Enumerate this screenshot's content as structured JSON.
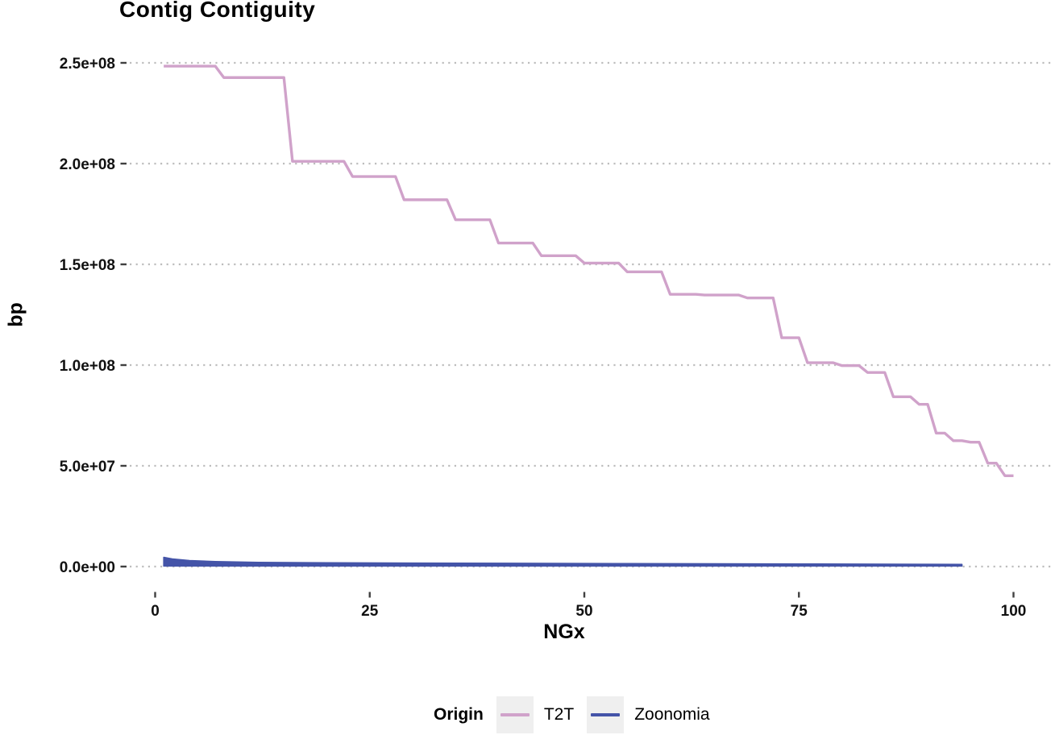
{
  "chart_data": {
    "type": "line",
    "title": "Contig Contiguity",
    "xlabel": "NGx",
    "ylabel": "bp",
    "xlim": [
      0,
      100
    ],
    "ylim": [
      0,
      250000000
    ],
    "x_ticks": [
      0,
      25,
      50,
      75,
      100
    ],
    "y_ticks": [
      {
        "value": 0,
        "label": "0.0e+00"
      },
      {
        "value": 50000000,
        "label": "5.0e+07"
      },
      {
        "value": 100000000,
        "label": "1.0e+08"
      },
      {
        "value": 150000000,
        "label": "1.5e+08"
      },
      {
        "value": 200000000,
        "label": "2.0e+08"
      },
      {
        "value": 250000000,
        "label": "2.5e+08"
      }
    ],
    "grid": "horizontal-dotted-only",
    "grid_color": "#BDBDBD",
    "tick_color": "#404040",
    "legend": {
      "title": "Origin",
      "position": "bottom",
      "entries": [
        {
          "label": "T2T",
          "color": "#D0A2CA"
        },
        {
          "label": "Zoonomia",
          "color": "#4454A8"
        }
      ]
    },
    "series": [
      {
        "name": "T2T",
        "style": "ngx-step-line",
        "color": "#D0A2CA",
        "line_width": 3.4,
        "segments": [
          {
            "from_x": 1,
            "to_x": 7,
            "bp": 248387328
          },
          {
            "from_x": 8,
            "to_x": 15,
            "bp": 242696752
          },
          {
            "from_x": 16,
            "to_x": 22,
            "bp": 201105948
          },
          {
            "from_x": 23,
            "to_x": 28,
            "bp": 193574945
          },
          {
            "from_x": 29,
            "to_x": 34,
            "bp": 182045439
          },
          {
            "from_x": 35,
            "to_x": 39,
            "bp": 172126628
          },
          {
            "from_x": 40,
            "to_x": 44,
            "bp": 160567428
          },
          {
            "from_x": 45,
            "to_x": 49,
            "bp": 154259566
          },
          {
            "from_x": 50,
            "to_x": 54,
            "bp": 150617247
          },
          {
            "from_x": 55,
            "to_x": 59,
            "bp": 146259331
          },
          {
            "from_x": 60,
            "to_x": 63,
            "bp": 135127769
          },
          {
            "from_x": 64,
            "to_x": 68,
            "bp": 134758134
          },
          {
            "from_x": 69,
            "to_x": 72,
            "bp": 133324548
          },
          {
            "from_x": 73,
            "to_x": 75,
            "bp": 113566686
          },
          {
            "from_x": 76,
            "to_x": 79,
            "bp": 101161492
          },
          {
            "from_x": 80,
            "to_x": 82,
            "bp": 99753195
          },
          {
            "from_x": 83,
            "to_x": 85,
            "bp": 96330374
          },
          {
            "from_x": 86,
            "to_x": 88,
            "bp": 84276897
          },
          {
            "from_x": 89,
            "to_x": 90,
            "bp": 80542538
          },
          {
            "from_x": 91,
            "to_x": 92,
            "bp": 66210255
          },
          {
            "from_x": 93,
            "to_x": 94,
            "bp": 62460029
          },
          {
            "from_x": 95,
            "to_x": 96,
            "bp": 61707364
          },
          {
            "from_x": 97,
            "to_x": 98,
            "bp": 51324926
          },
          {
            "from_x": 99,
            "to_x": 100,
            "bp": 45090682
          }
        ]
      },
      {
        "name": "Zoonomia",
        "style": "band-near-zero",
        "color": "#4454A8",
        "upper": [
          {
            "x": 1,
            "bp": 4600000
          },
          {
            "x": 2,
            "bp": 3800000
          },
          {
            "x": 4,
            "bp": 3000000
          },
          {
            "x": 7,
            "bp": 2500000
          },
          {
            "x": 12,
            "bp": 2100000
          },
          {
            "x": 20,
            "bp": 1900000
          },
          {
            "x": 35,
            "bp": 1700000
          },
          {
            "x": 55,
            "bp": 1500000
          },
          {
            "x": 75,
            "bp": 1300000
          },
          {
            "x": 90,
            "bp": 1150000
          },
          {
            "x": 94,
            "bp": 1100000
          }
        ],
        "lower_bp": 250000,
        "end_x": 94
      }
    ]
  }
}
